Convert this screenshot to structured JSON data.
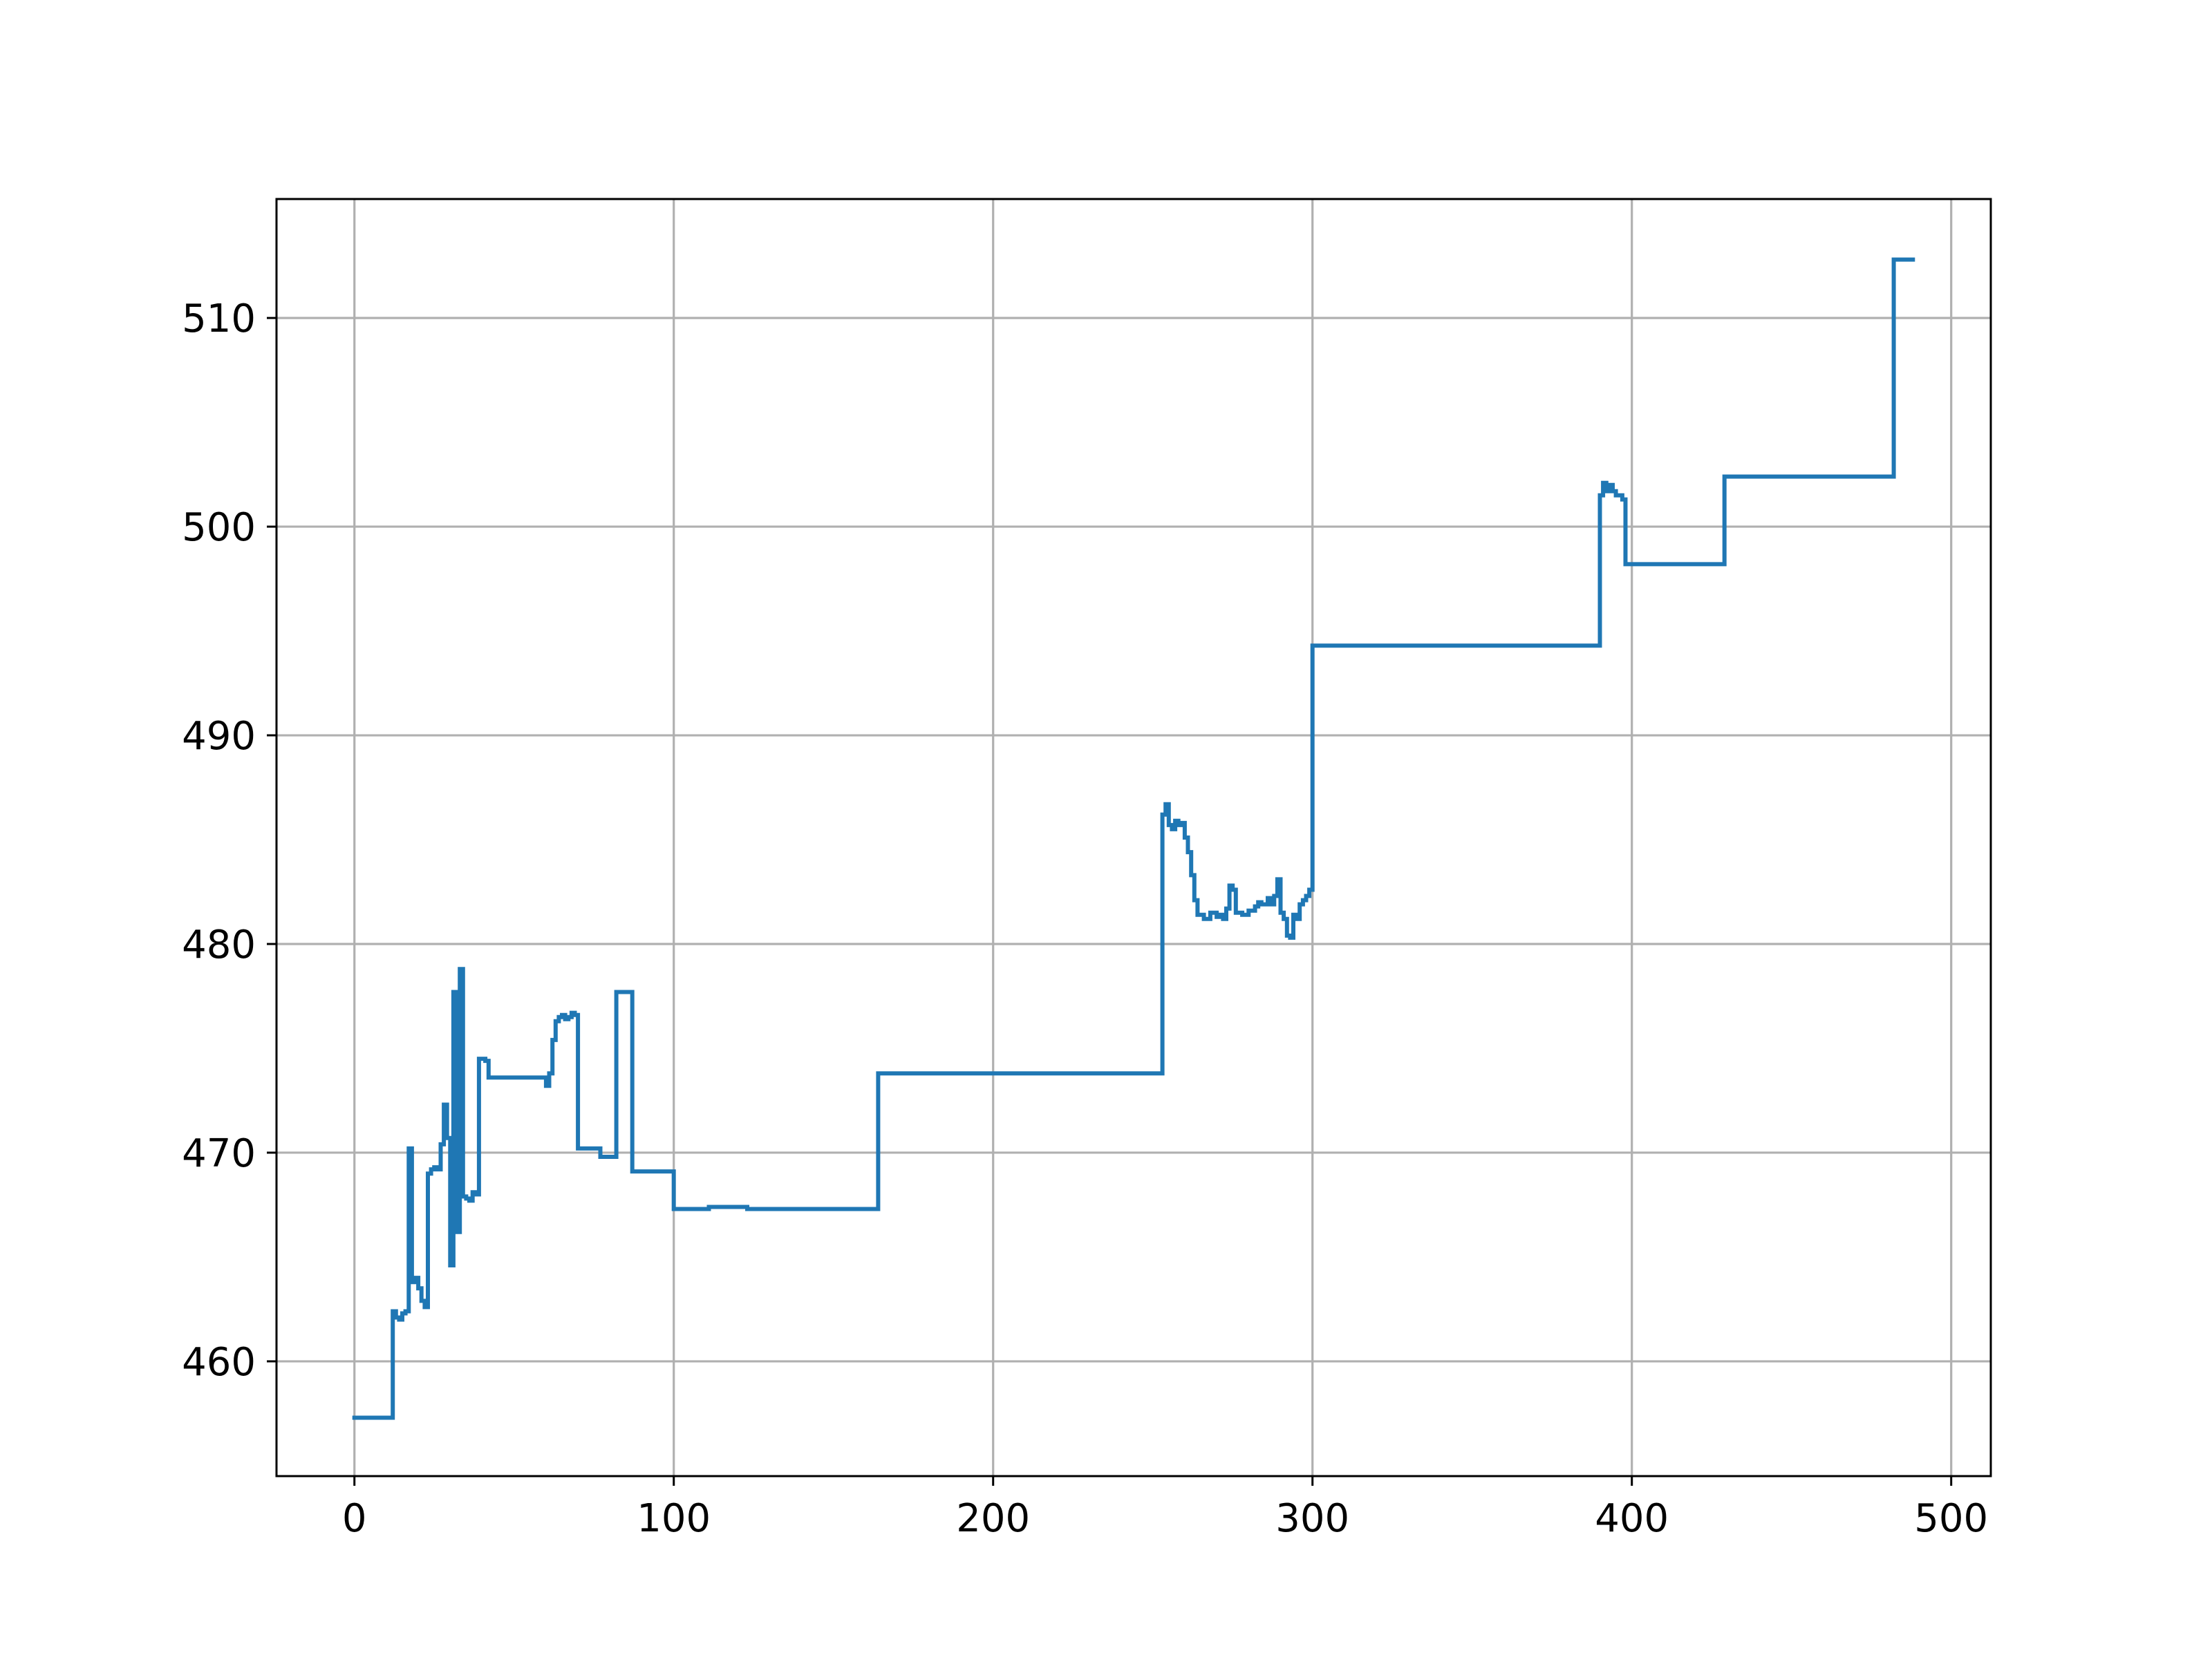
{
  "chart_data": {
    "type": "line",
    "title": "",
    "xlabel": "",
    "ylabel": "",
    "xlim": [
      -24.4,
      512.4
    ],
    "ylim": [
      454.5,
      515.7
    ],
    "xticks": [
      0,
      100,
      200,
      300,
      400,
      500
    ],
    "xtick_labels": [
      "0",
      "100",
      "200",
      "300",
      "400",
      "500"
    ],
    "yticks": [
      460,
      470,
      480,
      490,
      500,
      510
    ],
    "ytick_labels": [
      "460",
      "470",
      "480",
      "490",
      "500",
      "510"
    ],
    "grid": true,
    "line_color": "#1f77b4",
    "series": [
      {
        "step": true,
        "x": [
          0,
          12,
          13,
          14,
          15,
          16,
          17,
          18,
          19,
          20,
          21,
          22,
          23,
          24,
          25,
          26,
          27,
          28,
          29,
          30,
          31,
          32,
          33,
          34,
          35,
          36,
          37,
          38,
          39,
          40,
          41,
          42,
          43,
          44,
          45,
          48,
          49,
          55,
          60,
          61,
          62,
          63,
          64,
          65,
          66,
          67,
          68,
          69,
          70,
          75,
          77,
          80,
          82,
          83,
          84,
          87,
          100,
          110,
          111,
          122,
          123,
          164,
          200,
          253,
          254,
          255,
          256,
          257,
          258,
          259,
          260,
          261,
          262,
          263,
          264,
          266,
          268,
          270,
          271,
          272,
          273,
          274,
          275,
          276,
          278,
          280,
          282,
          283,
          284,
          286,
          287,
          288,
          289,
          290,
          291,
          292,
          293,
          294,
          295,
          296,
          297,
          298,
          299,
          300,
          390,
          391,
          392,
          393,
          394,
          395,
          396,
          397,
          398,
          428,
          429,
          481,
          482,
          488
        ],
        "y": [
          457.3,
          462.4,
          462.1,
          462.0,
          462.3,
          462.4,
          470.2,
          463.8,
          464.0,
          463.5,
          462.9,
          462.6,
          469.0,
          469.2,
          469.3,
          469.2,
          470.4,
          472.3,
          470.7,
          464.6,
          477.7,
          466.2,
          478.8,
          467.9,
          467.8,
          467.7,
          468.1,
          468.0,
          474.5,
          474.5,
          474.4,
          473.6,
          473.6,
          473.6,
          473.6,
          473.6,
          473.6,
          473.6,
          473.2,
          473.8,
          475.4,
          476.3,
          476.5,
          476.6,
          476.4,
          476.5,
          476.7,
          476.6,
          470.2,
          470.2,
          469.8,
          469.8,
          477.7,
          477.7,
          477.7,
          469.1,
          467.3,
          467.3,
          467.4,
          467.4,
          467.3,
          473.8,
          473.8,
          486.2,
          486.7,
          485.7,
          485.5,
          485.9,
          485.7,
          485.8,
          485.1,
          484.4,
          483.3,
          482.1,
          481.4,
          481.2,
          481.5,
          481.3,
          481.4,
          481.2,
          481.7,
          482.8,
          482.6,
          481.5,
          481.4,
          481.6,
          481.8,
          482.0,
          481.9,
          482.2,
          481.9,
          482.3,
          483.1,
          481.5,
          481.2,
          480.4,
          480.3,
          481.4,
          481.2,
          481.9,
          482.1,
          482.3,
          482.6,
          494.3,
          501.5,
          502.1,
          501.7,
          502.0,
          501.7,
          501.5,
          501.5,
          501.3,
          498.2,
          498.2,
          502.4,
          502.4,
          512.8,
          512.8
        ]
      }
    ]
  }
}
